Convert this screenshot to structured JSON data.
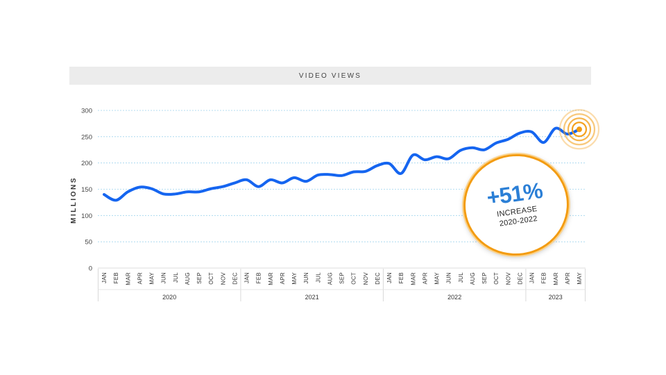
{
  "chart_data": {
    "type": "line",
    "title": "VIDEO VIEWS",
    "ylabel": "MILLIONS",
    "xlabel": "",
    "ylim": [
      0,
      300
    ],
    "yticks": [
      0,
      50,
      100,
      150,
      200,
      250,
      300
    ],
    "grid": true,
    "year_groups": [
      {
        "year": "2020",
        "months": [
          "JAN",
          "FEB",
          "MAR",
          "APR",
          "MAY",
          "JUN",
          "JUL",
          "AUG",
          "SEP",
          "OCT",
          "NOV",
          "DEC"
        ]
      },
      {
        "year": "2021",
        "months": [
          "JAN",
          "FEB",
          "MAR",
          "APR",
          "MAY",
          "JUN",
          "JUL",
          "AUG",
          "SEP",
          "OCT",
          "NOV",
          "DEC"
        ]
      },
      {
        "year": "2022",
        "months": [
          "JAN",
          "FEB",
          "MAR",
          "APR",
          "MAY",
          "JUN",
          "JUL",
          "AUG",
          "SEP",
          "OCT",
          "NOV",
          "DEC"
        ]
      },
      {
        "year": "2023",
        "months": [
          "JAN",
          "FEB",
          "MAR",
          "APR",
          "MAY"
        ]
      }
    ],
    "series": [
      {
        "values": [
          140,
          129,
          145,
          154,
          151,
          141,
          141,
          145,
          145,
          151,
          155,
          162,
          168,
          155,
          168,
          162,
          172,
          165,
          177,
          178,
          176,
          183,
          184,
          195,
          199,
          180,
          215,
          206,
          212,
          208,
          224,
          229,
          225,
          238,
          245,
          257,
          259,
          239,
          266,
          255,
          264
        ],
        "color": "#1565f0"
      }
    ],
    "annotation": {
      "value": "+51%",
      "line1": "INCREASE",
      "line2": "2020-2022",
      "highlight_color": "#f39c12"
    }
  }
}
